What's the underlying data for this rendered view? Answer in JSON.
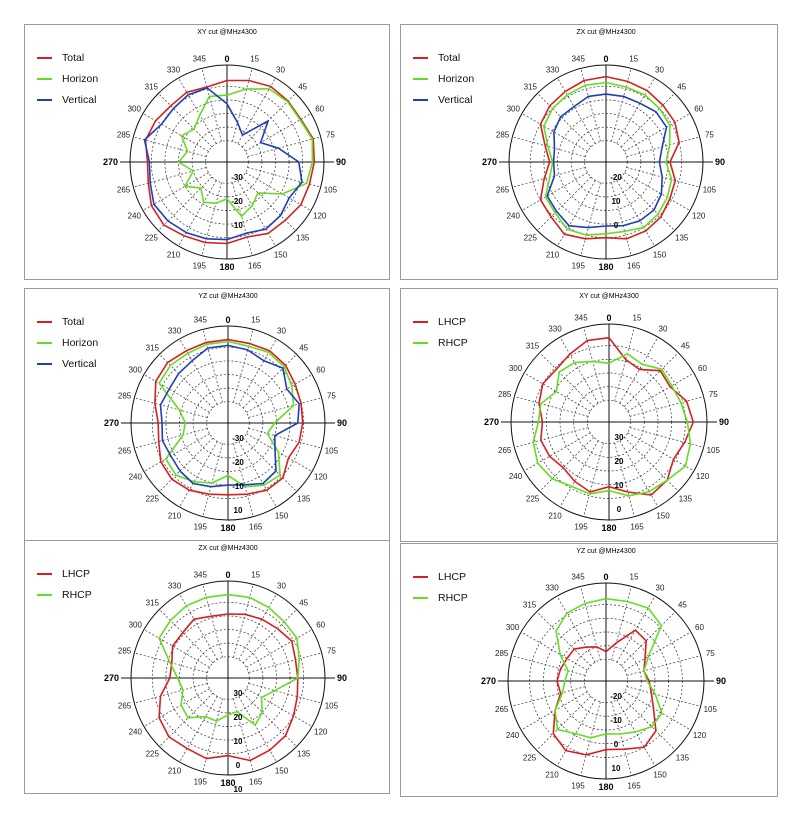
{
  "chart_data": [
    {
      "type": "polar",
      "title": "XY cut @MHz4300",
      "angle_labels": [
        "0",
        "15",
        "30",
        "45",
        "60",
        "75",
        "90",
        "105",
        "120",
        "135",
        "150",
        "165",
        "180",
        "195",
        "210",
        "225",
        "240",
        "265",
        "270",
        "285",
        "300",
        "315",
        "330",
        "345"
      ],
      "radial_labels": [
        "-30",
        "-20",
        "-10"
      ],
      "legend_position": "top-left",
      "series": [
        {
          "name": "Total",
          "color": "#d62020",
          "values": [
            0.84,
            0.87,
            0.9,
            0.89,
            0.88,
            0.92,
            0.9,
            0.88,
            0.88,
            0.85,
            0.85,
            0.8,
            0.84,
            0.86,
            0.88,
            0.92,
            0.9,
            0.84,
            0.82,
            0.87,
            0.85,
            0.82,
            0.83,
            0.8
          ]
        },
        {
          "name": "Horizon",
          "color": "#66dd22",
          "values": [
            0.69,
            0.78,
            0.87,
            0.88,
            0.87,
            0.91,
            0.88,
            0.85,
            0.66,
            0.45,
            0.52,
            0.58,
            0.38,
            0.44,
            0.48,
            0.38,
            0.5,
            0.36,
            0.5,
            0.42,
            0.54,
            0.48,
            0.56,
            0.7
          ]
        },
        {
          "name": "Vertical",
          "color": "#1f3fb8",
          "values": [
            0.6,
            0.42,
            0.32,
            0.6,
            0.4,
            0.55,
            0.74,
            0.8,
            0.74,
            0.78,
            0.8,
            0.76,
            0.8,
            0.82,
            0.84,
            0.86,
            0.87,
            0.82,
            0.8,
            0.88,
            0.78,
            0.78,
            0.8,
            0.79
          ]
        }
      ]
    },
    {
      "type": "polar",
      "title": "ZX cut @MHz4300",
      "angle_labels": [
        "0",
        "15",
        "30",
        "45",
        "60",
        "75",
        "90",
        "105",
        "120",
        "135",
        "150",
        "165",
        "180",
        "195",
        "210",
        "225",
        "240",
        "265",
        "270",
        "285",
        "300",
        "315",
        "330",
        "345"
      ],
      "radial_labels": [
        "-20",
        "10",
        "0"
      ],
      "legend_position": "top-left",
      "series": [
        {
          "name": "Total",
          "color": "#d62020",
          "values": [
            0.88,
            0.86,
            0.85,
            0.83,
            0.82,
            0.78,
            0.66,
            0.74,
            0.76,
            0.8,
            0.82,
            0.82,
            0.78,
            0.82,
            0.86,
            0.8,
            0.78,
            0.66,
            0.58,
            0.65,
            0.78,
            0.82,
            0.84,
            0.87
          ]
        },
        {
          "name": "Horizon",
          "color": "#66dd22",
          "values": [
            0.82,
            0.8,
            0.8,
            0.78,
            0.76,
            0.68,
            0.62,
            0.7,
            0.73,
            0.76,
            0.78,
            0.74,
            0.74,
            0.78,
            0.8,
            0.74,
            0.72,
            0.6,
            0.55,
            0.62,
            0.74,
            0.78,
            0.8,
            0.82
          ]
        },
        {
          "name": "Vertical",
          "color": "#1f3fb8",
          "values": [
            0.7,
            0.7,
            0.7,
            0.73,
            0.72,
            0.6,
            0.55,
            0.6,
            0.66,
            0.7,
            0.7,
            0.68,
            0.66,
            0.7,
            0.76,
            0.72,
            0.7,
            0.55,
            0.54,
            0.55,
            0.62,
            0.66,
            0.66,
            0.7
          ]
        }
      ]
    },
    {
      "type": "polar",
      "title": "YZ cut @MHz4300",
      "angle_labels": [
        "0",
        "15",
        "30",
        "45",
        "60",
        "75",
        "90",
        "105",
        "120",
        "135",
        "150",
        "165",
        "180",
        "195",
        "210",
        "225",
        "240",
        "265",
        "270",
        "285",
        "300",
        "315",
        "330",
        "345"
      ],
      "radial_labels": [
        "-30",
        "-20",
        "-10",
        "10"
      ],
      "legend_position": "top-left",
      "series": [
        {
          "name": "Total",
          "color": "#d62020",
          "values": [
            0.86,
            0.85,
            0.86,
            0.84,
            0.8,
            0.78,
            0.77,
            0.76,
            0.72,
            0.8,
            0.8,
            0.76,
            0.74,
            0.76,
            0.8,
            0.82,
            0.8,
            0.74,
            0.72,
            0.78,
            0.86,
            0.88,
            0.86,
            0.86
          ]
        },
        {
          "name": "Horizon",
          "color": "#66dd22",
          "values": [
            0.84,
            0.82,
            0.84,
            0.82,
            0.76,
            0.7,
            0.48,
            0.42,
            0.6,
            0.76,
            0.74,
            0.68,
            0.54,
            0.64,
            0.7,
            0.76,
            0.74,
            0.48,
            0.44,
            0.52,
            0.82,
            0.84,
            0.83,
            0.84
          ]
        },
        {
          "name": "Vertical",
          "color": "#1f3fb8",
          "values": [
            0.8,
            0.78,
            0.74,
            0.8,
            0.7,
            0.76,
            0.72,
            0.5,
            0.56,
            0.7,
            0.72,
            0.66,
            0.64,
            0.68,
            0.72,
            0.7,
            0.68,
            0.7,
            0.68,
            0.72,
            0.7,
            0.72,
            0.74,
            0.8
          ]
        }
      ]
    },
    {
      "type": "polar",
      "title": "XY cut @MHz4300",
      "angle_labels": [
        "0",
        "15",
        "30",
        "45",
        "60",
        "75",
        "90",
        "105",
        "120",
        "135",
        "150",
        "165",
        "180",
        "195",
        "210",
        "225",
        "240",
        "265",
        "270",
        "285",
        "300",
        "315",
        "330",
        "345"
      ],
      "radial_labels": [
        "30",
        "20",
        "10",
        "0"
      ],
      "legend_position": "top-left",
      "series": [
        {
          "name": "LHCP",
          "color": "#d62020",
          "values": [
            0.86,
            0.66,
            0.62,
            0.74,
            0.72,
            0.82,
            0.86,
            0.8,
            0.76,
            0.84,
            0.86,
            0.74,
            0.66,
            0.74,
            0.7,
            0.66,
            0.7,
            0.72,
            0.68,
            0.74,
            0.78,
            0.76,
            0.8,
            0.86
          ]
        },
        {
          "name": "RHCP",
          "color": "#66dd22",
          "values": [
            0.6,
            0.72,
            0.68,
            0.76,
            0.74,
            0.76,
            0.8,
            0.86,
            0.9,
            0.84,
            0.82,
            0.78,
            0.7,
            0.76,
            0.76,
            0.82,
            0.84,
            0.8,
            0.72,
            0.72,
            0.62,
            0.72,
            0.7,
            0.64
          ]
        }
      ]
    },
    {
      "type": "polar",
      "title": "ZX cut @MHz4300",
      "angle_labels": [
        "0",
        "15",
        "30",
        "45",
        "60",
        "75",
        "90",
        "105",
        "120",
        "135",
        "150",
        "165",
        "180",
        "195",
        "210",
        "225",
        "240",
        "265",
        "270",
        "285",
        "300",
        "315",
        "330",
        "345"
      ],
      "radial_labels": [
        "30",
        "20",
        "10",
        "0",
        "10"
      ],
      "legend_position": "top-left",
      "series": [
        {
          "name": "LHCP",
          "color": "#d62020",
          "values": [
            0.66,
            0.68,
            0.7,
            0.72,
            0.76,
            0.72,
            0.72,
            0.74,
            0.78,
            0.84,
            0.86,
            0.88,
            0.8,
            0.86,
            0.84,
            0.86,
            0.82,
            0.72,
            0.6,
            0.6,
            0.66,
            0.66,
            0.7,
            0.66
          ]
        },
        {
          "name": "RHCP",
          "color": "#66dd22",
          "values": [
            0.86,
            0.86,
            0.84,
            0.82,
            0.82,
            0.76,
            0.72,
            0.5,
            0.4,
            0.5,
            0.56,
            0.36,
            0.38,
            0.46,
            0.46,
            0.58,
            0.56,
            0.48,
            0.52,
            0.62,
            0.82,
            0.84,
            0.86,
            0.86
          ]
        }
      ]
    },
    {
      "type": "polar",
      "title": "YZ cut @MHz4300",
      "angle_labels": [
        "0",
        "15",
        "30",
        "45",
        "60",
        "75",
        "90",
        "105",
        "120",
        "135",
        "150",
        "165",
        "180",
        "195",
        "210",
        "225",
        "240",
        "265",
        "270",
        "285",
        "300",
        "315",
        "330",
        "345"
      ],
      "radial_labels": [
        "-20",
        "-10",
        "0",
        "10"
      ],
      "legend_position": "top-left",
      "series": [
        {
          "name": "LHCP",
          "color": "#d62020",
          "values": [
            0.3,
            0.4,
            0.6,
            0.58,
            0.46,
            0.4,
            0.44,
            0.48,
            0.56,
            0.72,
            0.78,
            0.72,
            0.7,
            0.78,
            0.82,
            0.76,
            0.6,
            0.48,
            0.5,
            0.48,
            0.46,
            0.46,
            0.4,
            0.36
          ]
        },
        {
          "name": "RHCP",
          "color": "#66dd22",
          "values": [
            0.84,
            0.84,
            0.86,
            0.8,
            0.5,
            0.4,
            0.42,
            0.52,
            0.66,
            0.66,
            0.6,
            0.56,
            0.54,
            0.6,
            0.62,
            0.7,
            0.6,
            0.46,
            0.42,
            0.4,
            0.54,
            0.72,
            0.8,
            0.82
          ]
        }
      ]
    }
  ]
}
